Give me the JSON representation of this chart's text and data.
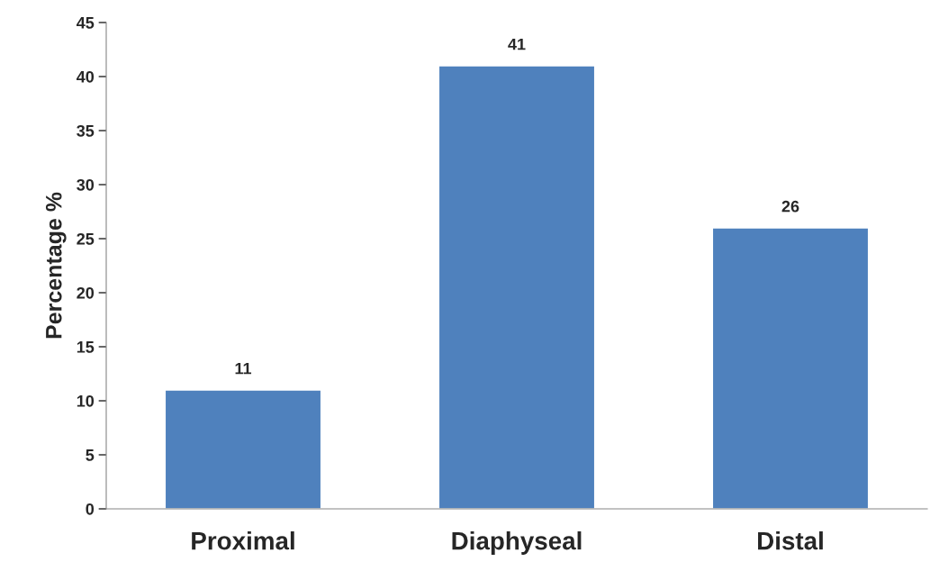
{
  "chart_data": {
    "type": "bar",
    "ylabel": "Percentage %",
    "categories": [
      "Proximal",
      "Diaphyseal",
      "Distal"
    ],
    "values": [
      11,
      41,
      26
    ],
    "color": "#4f81bd",
    "ylim": [
      0,
      45
    ],
    "yticks": [
      0,
      5,
      10,
      15,
      20,
      25,
      30,
      35,
      40,
      45
    ],
    "grid": false,
    "data_labels": true
  }
}
